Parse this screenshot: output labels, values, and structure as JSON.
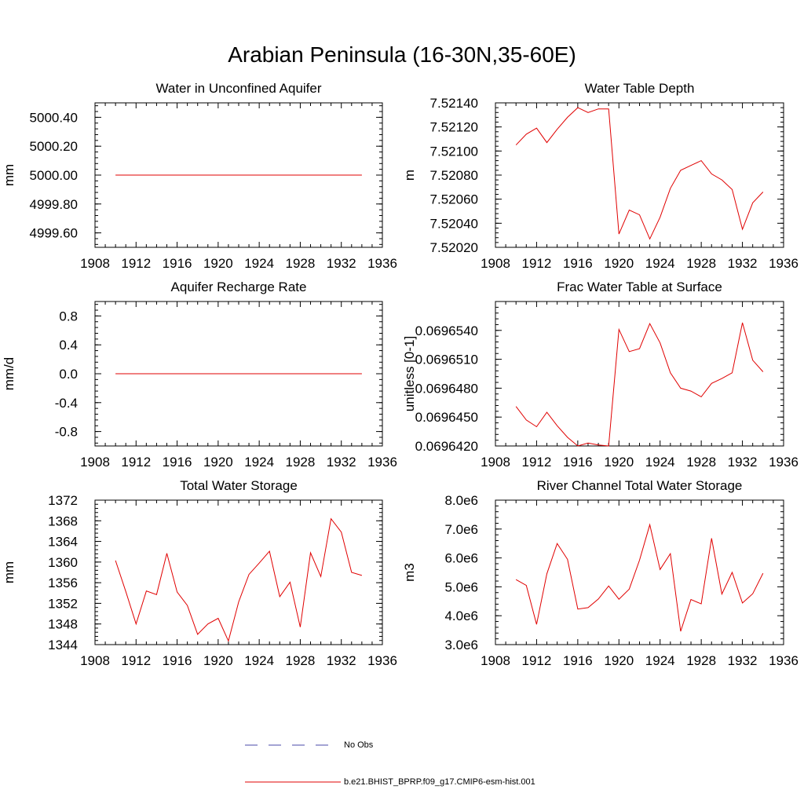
{
  "title": "Arabian Peninsula (16-30N,35-60E)",
  "legend": [
    {
      "label": "No Obs",
      "color": "#4a4aa8",
      "style": "dashed"
    },
    {
      "label": "b.e21.BHIST_BPRP.f09_g17.CMIP6-esm-hist.001",
      "color": "#e00000",
      "style": "solid"
    }
  ],
  "chart_data": [
    {
      "type": "line",
      "title": "Water in Unconfined Aquifer",
      "ylabel": "mm",
      "xlim": [
        1908,
        1936
      ],
      "xticks": [
        1908,
        1912,
        1916,
        1920,
        1924,
        1928,
        1932,
        1936
      ],
      "ylim": [
        4999.5,
        5000.5
      ],
      "yticks": [
        4999.6,
        4999.8,
        5000.0,
        5000.2,
        5000.4
      ],
      "ytick_labels": [
        "4999.60",
        "4999.80",
        "5000.00",
        "5000.20",
        "5000.40"
      ],
      "series": [
        {
          "color": "#e00000",
          "x": [
            1910,
            1911,
            1912,
            1913,
            1914,
            1915,
            1916,
            1917,
            1918,
            1919,
            1920,
            1921,
            1922,
            1923,
            1924,
            1925,
            1926,
            1927,
            1928,
            1929,
            1930,
            1931,
            1932,
            1933,
            1934
          ],
          "y": [
            5000,
            5000,
            5000,
            5000,
            5000,
            5000,
            5000,
            5000,
            5000,
            5000,
            5000,
            5000,
            5000,
            5000,
            5000,
            5000,
            5000,
            5000,
            5000,
            5000,
            5000,
            5000,
            5000,
            5000,
            5000
          ]
        }
      ]
    },
    {
      "type": "line",
      "title": "Water Table Depth",
      "ylabel": "m",
      "xlim": [
        1908,
        1936
      ],
      "xticks": [
        1908,
        1912,
        1916,
        1920,
        1924,
        1928,
        1932,
        1936
      ],
      "ylim": [
        7.5202,
        7.5214
      ],
      "yticks": [
        7.5202,
        7.5204,
        7.5206,
        7.5208,
        7.521,
        7.5212,
        7.5214
      ],
      "ytick_labels": [
        "7.52020",
        "7.52040",
        "7.52060",
        "7.52080",
        "7.52100",
        "7.52120",
        "7.52140"
      ],
      "series": [
        {
          "color": "#e00000",
          "x": [
            1910,
            1911,
            1912,
            1913,
            1914,
            1915,
            1916,
            1917,
            1918,
            1919,
            1920,
            1921,
            1922,
            1923,
            1924,
            1925,
            1926,
            1927,
            1928,
            1929,
            1930,
            1931,
            1932,
            1933,
            1934
          ],
          "y": [
            7.52105,
            7.52114,
            7.52119,
            7.52107,
            7.52118,
            7.52128,
            7.52136,
            7.52132,
            7.52135,
            7.52135,
            7.52031,
            7.52051,
            7.52047,
            7.52027,
            7.52045,
            7.52069,
            7.52084,
            7.52088,
            7.52092,
            7.52081,
            7.52076,
            7.52068,
            7.52035,
            7.52057,
            7.52066
          ]
        }
      ]
    },
    {
      "type": "line",
      "title": "Aquifer Recharge Rate",
      "ylabel": "mm/d",
      "xlim": [
        1908,
        1936
      ],
      "xticks": [
        1908,
        1912,
        1916,
        1920,
        1924,
        1928,
        1932,
        1936
      ],
      "ylim": [
        -1.0,
        1.0
      ],
      "yticks": [
        -0.8,
        -0.4,
        0.0,
        0.4,
        0.8
      ],
      "ytick_labels": [
        "-0.8",
        "-0.4",
        "0.0",
        "0.4",
        "0.8"
      ],
      "series": [
        {
          "color": "#e00000",
          "x": [
            1910,
            1911,
            1912,
            1913,
            1914,
            1915,
            1916,
            1917,
            1918,
            1919,
            1920,
            1921,
            1922,
            1923,
            1924,
            1925,
            1926,
            1927,
            1928,
            1929,
            1930,
            1931,
            1932,
            1933,
            1934
          ],
          "y": [
            0,
            0,
            0,
            0,
            0,
            0,
            0,
            0,
            0,
            0,
            0,
            0,
            0,
            0,
            0,
            0,
            0,
            0,
            0,
            0,
            0,
            0,
            0,
            0,
            0
          ]
        }
      ]
    },
    {
      "type": "line",
      "title": "Frac Water Table at Surface",
      "ylabel": "unitless [0-1]",
      "xlim": [
        1908,
        1936
      ],
      "xticks": [
        1908,
        1912,
        1916,
        1920,
        1924,
        1928,
        1932,
        1936
      ],
      "ylim": [
        0.069642,
        0.069657
      ],
      "yticks": [
        0.069642,
        0.069645,
        0.069648,
        0.069651,
        0.069654
      ],
      "ytick_labels": [
        "0.0696420",
        "0.0696450",
        "0.0696480",
        "0.0696510",
        "0.0696540"
      ],
      "series": [
        {
          "color": "#e00000",
          "x": [
            1910,
            1911,
            1912,
            1913,
            1914,
            1915,
            1916,
            1917,
            1918,
            1919,
            1920,
            1921,
            1922,
            1923,
            1924,
            1925,
            1926,
            1927,
            1928,
            1929,
            1930,
            1931,
            1932,
            1933,
            1934
          ],
          "y": [
            0.0696461,
            0.0696447,
            0.069644,
            0.0696455,
            0.0696441,
            0.0696429,
            0.069642,
            0.0696423,
            0.0696421,
            0.069642,
            0.0696541,
            0.0696518,
            0.0696521,
            0.0696547,
            0.0696527,
            0.0696496,
            0.069648,
            0.0696477,
            0.0696471,
            0.0696485,
            0.069649,
            0.0696496,
            0.0696548,
            0.0696509,
            0.0696497
          ]
        }
      ]
    },
    {
      "type": "line",
      "title": "Total Water Storage",
      "ylabel": "mm",
      "xlim": [
        1908,
        1936
      ],
      "xticks": [
        1908,
        1912,
        1916,
        1920,
        1924,
        1928,
        1932,
        1936
      ],
      "ylim": [
        1344,
        1372
      ],
      "yticks": [
        1344,
        1348,
        1352,
        1356,
        1360,
        1364,
        1368,
        1372
      ],
      "ytick_labels": [
        "1344",
        "1348",
        "1352",
        "1356",
        "1360",
        "1364",
        "1368",
        "1372"
      ],
      "series": [
        {
          "color": "#e00000",
          "x": [
            1910,
            1911,
            1912,
            1913,
            1914,
            1915,
            1916,
            1917,
            1918,
            1919,
            1920,
            1921,
            1922,
            1923,
            1924,
            1925,
            1926,
            1927,
            1928,
            1929,
            1930,
            1931,
            1932,
            1933,
            1934
          ],
          "y": [
            1360.3,
            1354.3,
            1348.0,
            1354.4,
            1353.7,
            1361.7,
            1354.2,
            1351.6,
            1346.0,
            1348.0,
            1349.1,
            1344.7,
            1352.3,
            1357.6,
            1359.8,
            1362.1,
            1353.3,
            1356.1,
            1347.4,
            1361.8,
            1357.2,
            1368.4,
            1365.8,
            1358.0,
            1357.4
          ]
        }
      ]
    },
    {
      "type": "line",
      "title": "River Channel Total Water Storage",
      "ylabel": "m3",
      "xlim": [
        1908,
        1936
      ],
      "xticks": [
        1908,
        1912,
        1916,
        1920,
        1924,
        1928,
        1932,
        1936
      ],
      "ylim": [
        3000000,
        8000000
      ],
      "yticks": [
        3000000,
        4000000,
        5000000,
        6000000,
        7000000,
        8000000
      ],
      "ytick_labels": [
        "3.0e6",
        "4.0e6",
        "5.0e6",
        "6.0e6",
        "7.0e6",
        "8.0e6"
      ],
      "series": [
        {
          "color": "#e00000",
          "x": [
            1910,
            1911,
            1912,
            1913,
            1914,
            1915,
            1916,
            1917,
            1918,
            1919,
            1920,
            1921,
            1922,
            1923,
            1924,
            1925,
            1926,
            1927,
            1928,
            1929,
            1930,
            1931,
            1932,
            1933,
            1934
          ],
          "y": [
            5250000,
            5050000,
            3700000,
            5450000,
            6500000,
            5950000,
            4230000,
            4280000,
            4580000,
            5030000,
            4570000,
            4920000,
            5920000,
            7150000,
            5600000,
            6150000,
            3460000,
            4560000,
            4410000,
            6680000,
            4750000,
            5500000,
            4440000,
            4760000,
            5470000
          ]
        }
      ]
    }
  ]
}
